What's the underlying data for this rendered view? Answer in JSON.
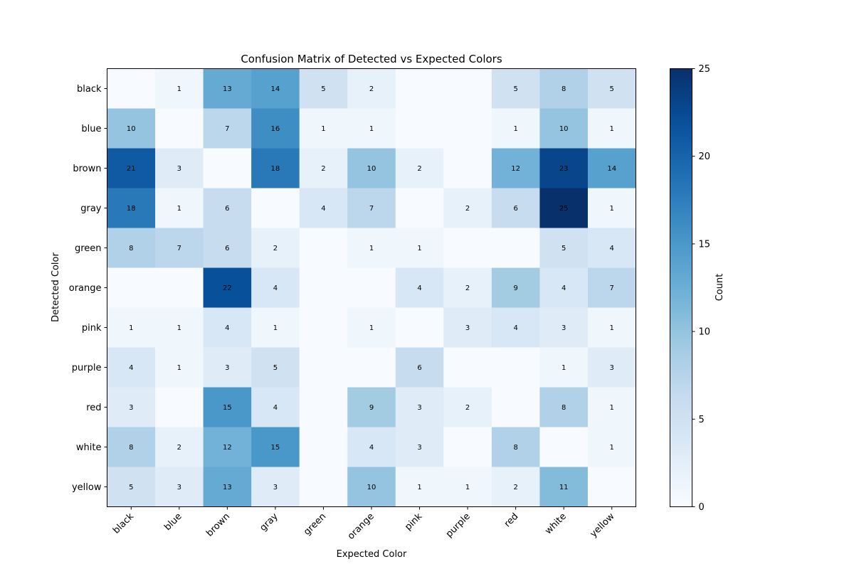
{
  "chart_data": {
    "type": "heatmap",
    "title": "Confusion Matrix of Detected vs Expected Colors",
    "xlabel": "Expected Color",
    "ylabel": "Detected Color",
    "x_categories": [
      "black",
      "blue",
      "brown",
      "gray",
      "green",
      "orange",
      "pink",
      "purple",
      "red",
      "white",
      "yellow"
    ],
    "y_categories": [
      "black",
      "blue",
      "brown",
      "gray",
      "green",
      "orange",
      "pink",
      "purple",
      "red",
      "white",
      "yellow"
    ],
    "values": [
      [
        0,
        1,
        13,
        14,
        5,
        2,
        0,
        0,
        5,
        8,
        5
      ],
      [
        10,
        0,
        7,
        16,
        1,
        1,
        0,
        0,
        1,
        10,
        1
      ],
      [
        21,
        3,
        0,
        18,
        2,
        10,
        2,
        0,
        12,
        23,
        14
      ],
      [
        18,
        1,
        6,
        0,
        4,
        7,
        0,
        2,
        6,
        25,
        1
      ],
      [
        8,
        7,
        6,
        2,
        0,
        1,
        1,
        0,
        0,
        5,
        4
      ],
      [
        0,
        0,
        22,
        4,
        0,
        0,
        4,
        2,
        9,
        4,
        7
      ],
      [
        1,
        1,
        4,
        1,
        0,
        1,
        0,
        3,
        4,
        3,
        1
      ],
      [
        4,
        1,
        3,
        5,
        0,
        0,
        6,
        0,
        0,
        1,
        3
      ],
      [
        3,
        0,
        15,
        4,
        0,
        9,
        3,
        2,
        0,
        8,
        1
      ],
      [
        8,
        2,
        12,
        15,
        0,
        4,
        3,
        0,
        8,
        0,
        1
      ],
      [
        5,
        3,
        13,
        3,
        0,
        10,
        1,
        1,
        2,
        11,
        0
      ]
    ],
    "hide_zero_labels": true,
    "colormap": "Blues",
    "colorbar": {
      "label": "Count",
      "range": [
        0,
        25
      ],
      "ticks": [
        0,
        5,
        10,
        15,
        20,
        25
      ]
    },
    "grid": false
  }
}
